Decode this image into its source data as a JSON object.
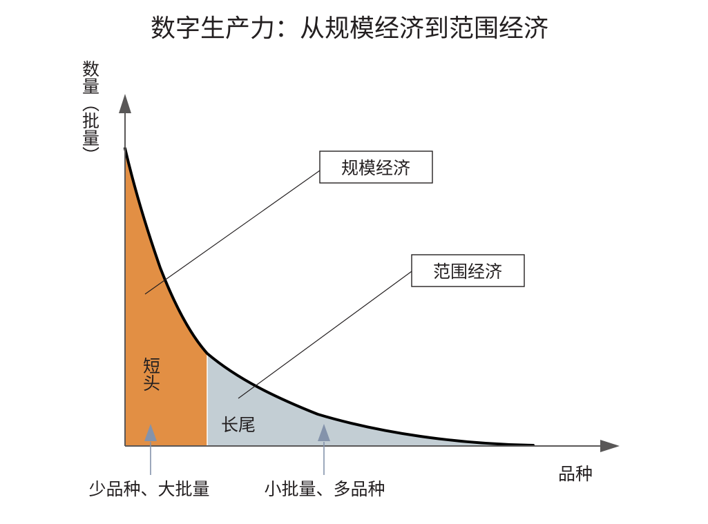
{
  "title": "数字生产力：从规模经济到范围经济",
  "y_axis_label": "数量（批量）",
  "x_axis_label": "品种",
  "callouts": {
    "scale_economy": "规模经济",
    "scope_economy": "范围经济"
  },
  "regions": {
    "short_head": "短头",
    "long_tail": "长尾"
  },
  "bottom_labels": {
    "left": "少品种、大批量",
    "right": "小批量、多品种"
  },
  "colors": {
    "short_head_fill": "#e28f44",
    "long_tail_fill": "#c3ced4",
    "curve": "#000000",
    "axis": "#595757",
    "arrow": "#8493ab"
  }
}
